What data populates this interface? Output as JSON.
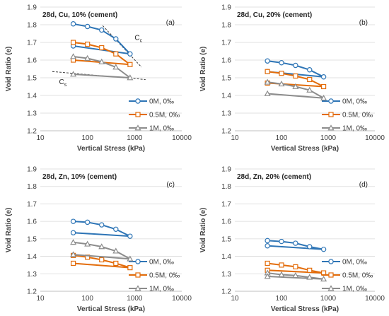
{
  "series_colors": [
    "#2E75B6",
    "#E36C0A",
    "#8C8C8C"
  ],
  "chart_data": [
    {
      "type": "line",
      "panel_label": "(a)",
      "condition": "28d, Cu, 10% (cement)",
      "xlabel": "Vertical Stress (kPa)",
      "ylabel": "Void Ratio (e)",
      "xscale": "log",
      "xlim": [
        10,
        10000
      ],
      "ylim": [
        1.2,
        1.9
      ],
      "x_ticks": [
        "10",
        "100",
        "1000",
        "10000"
      ],
      "y_ticks": [
        "1.2",
        "1.3",
        "1.4",
        "1.5",
        "1.6",
        "1.7",
        "1.8",
        "1.9"
      ],
      "legend": "right",
      "series": [
        {
          "name": "0M, 0‰",
          "marker": "circle",
          "loading": [
            [
              50,
              1.805
            ],
            [
              100,
              1.79
            ],
            [
              200,
              1.77
            ],
            [
              400,
              1.72
            ],
            [
              800,
              1.635
            ]
          ],
          "unloading": [
            [
              800,
              1.635
            ],
            [
              50,
              1.68
            ]
          ]
        },
        {
          "name": "0.5M, 0‰",
          "marker": "square",
          "loading": [
            [
              50,
              1.7
            ],
            [
              100,
              1.69
            ],
            [
              200,
              1.67
            ],
            [
              400,
              1.635
            ],
            [
              800,
              1.575
            ]
          ],
          "unloading": [
            [
              800,
              1.575
            ],
            [
              50,
              1.6
            ]
          ]
        },
        {
          "name": "1M, 0‰",
          "marker": "triangle",
          "loading": [
            [
              50,
              1.62
            ],
            [
              100,
              1.61
            ],
            [
              200,
              1.59
            ],
            [
              400,
              1.56
            ],
            [
              800,
              1.5
            ]
          ],
          "unloading": [
            [
              800,
              1.5
            ],
            [
              50,
              1.52
            ]
          ]
        }
      ],
      "annotations": [
        {
          "text": "C",
          "sub": "c",
          "x": 1000,
          "y": 1.715
        },
        {
          "text": "C",
          "sub": "s",
          "x": 25,
          "y": 1.465
        }
      ],
      "guide_lines": [
        {
          "from": [
            210,
            1.795
          ],
          "to": [
            1400,
            1.56
          ]
        },
        {
          "from": [
            18,
            1.535
          ],
          "to": [
            1700,
            1.49
          ]
        }
      ]
    },
    {
      "type": "line",
      "panel_label": "(b)",
      "condition": "28d, Cu, 20% (cement)",
      "xlabel": "Vertical Stress (kPa)",
      "ylabel": "Void Ratio (e)",
      "xscale": "log",
      "xlim": [
        10,
        10000
      ],
      "ylim": [
        1.2,
        1.9
      ],
      "x_ticks": [
        "10",
        "100",
        "1000",
        "10000"
      ],
      "y_ticks": [
        "1.2",
        "1.3",
        "1.4",
        "1.5",
        "1.6",
        "1.7",
        "1.8",
        "1.9"
      ],
      "legend": "right",
      "series": [
        {
          "name": "0M, 0‰",
          "marker": "circle",
          "loading": [
            [
              50,
              1.595
            ],
            [
              100,
              1.585
            ],
            [
              200,
              1.57
            ],
            [
              400,
              1.545
            ],
            [
              800,
              1.505
            ]
          ],
          "unloading": [
            [
              800,
              1.505
            ],
            [
              50,
              1.535
            ]
          ]
        },
        {
          "name": "0.5M, 0‰",
          "marker": "square",
          "loading": [
            [
              50,
              1.535
            ],
            [
              100,
              1.525
            ],
            [
              200,
              1.51
            ],
            [
              400,
              1.49
            ],
            [
              800,
              1.45
            ]
          ],
          "unloading": [
            [
              800,
              1.45
            ],
            [
              50,
              1.47
            ]
          ]
        },
        {
          "name": "1M, 0‰",
          "marker": "triangle",
          "loading": [
            [
              50,
              1.475
            ],
            [
              100,
              1.465
            ],
            [
              200,
              1.45
            ],
            [
              400,
              1.43
            ],
            [
              800,
              1.385
            ]
          ],
          "unloading": [
            [
              800,
              1.385
            ],
            [
              50,
              1.41
            ]
          ]
        }
      ]
    },
    {
      "type": "line",
      "panel_label": "(c)",
      "condition": "28d, Zn, 10% (cement)",
      "xlabel": "Vertical Stress (kPa)",
      "ylabel": "Void Ratio (e)",
      "xscale": "log",
      "xlim": [
        10,
        10000
      ],
      "ylim": [
        1.2,
        1.9
      ],
      "x_ticks": [
        "10",
        "100",
        "1000",
        "10000"
      ],
      "y_ticks": [
        "1.2",
        "1.3",
        "1.4",
        "1.5",
        "1.6",
        "1.7",
        "1.8",
        "1.9"
      ],
      "legend": "right",
      "series": [
        {
          "name": "0M, 0‰",
          "marker": "circle",
          "loading": [
            [
              50,
              1.6
            ],
            [
              100,
              1.595
            ],
            [
              200,
              1.58
            ],
            [
              400,
              1.555
            ],
            [
              800,
              1.515
            ]
          ],
          "unloading": [
            [
              800,
              1.515
            ],
            [
              50,
              1.535
            ]
          ]
        },
        {
          "name": "0.5M, 0‰",
          "marker": "square",
          "loading": [
            [
              50,
              1.405
            ],
            [
              100,
              1.395
            ],
            [
              200,
              1.38
            ],
            [
              400,
              1.36
            ],
            [
              800,
              1.335
            ]
          ],
          "unloading": [
            [
              800,
              1.335
            ],
            [
              50,
              1.36
            ]
          ]
        },
        {
          "name": "1M, 0‰",
          "marker": "triangle",
          "loading": [
            [
              50,
              1.48
            ],
            [
              100,
              1.47
            ],
            [
              200,
              1.455
            ],
            [
              400,
              1.43
            ],
            [
              800,
              1.385
            ]
          ],
          "unloading": [
            [
              800,
              1.385
            ],
            [
              50,
              1.41
            ]
          ]
        }
      ]
    },
    {
      "type": "line",
      "panel_label": "(d)",
      "condition": "28d, Zn, 20% (cement)",
      "xlabel": "Vertical Stress (kPa)",
      "ylabel": "Void Ratio (e)",
      "xscale": "log",
      "xlim": [
        10,
        10000
      ],
      "ylim": [
        1.2,
        1.9
      ],
      "x_ticks": [
        "10",
        "100",
        "1000",
        "10000"
      ],
      "y_ticks": [
        "1.2",
        "1.3",
        "1.4",
        "1.5",
        "1.6",
        "1.7",
        "1.8",
        "1.9"
      ],
      "legend": "right",
      "series": [
        {
          "name": "0M, 0‰",
          "marker": "circle",
          "loading": [
            [
              50,
              1.49
            ],
            [
              100,
              1.485
            ],
            [
              200,
              1.475
            ],
            [
              400,
              1.455
            ],
            [
              800,
              1.44
            ]
          ],
          "unloading": [
            [
              800,
              1.44
            ],
            [
              50,
              1.46
            ]
          ]
        },
        {
          "name": "0.5M, 0‰",
          "marker": "square",
          "loading": [
            [
              50,
              1.36
            ],
            [
              100,
              1.35
            ],
            [
              200,
              1.34
            ],
            [
              400,
              1.32
            ],
            [
              800,
              1.305
            ]
          ],
          "unloading": [
            [
              800,
              1.305
            ],
            [
              50,
              1.32
            ]
          ]
        },
        {
          "name": "1M, 0‰",
          "marker": "triangle",
          "loading": [
            [
              50,
              1.305
            ],
            [
              100,
              1.295
            ],
            [
              200,
              1.29
            ],
            [
              400,
              1.28
            ],
            [
              800,
              1.27
            ]
          ],
          "unloading": [
            [
              800,
              1.27
            ],
            [
              50,
              1.285
            ]
          ]
        }
      ]
    }
  ]
}
